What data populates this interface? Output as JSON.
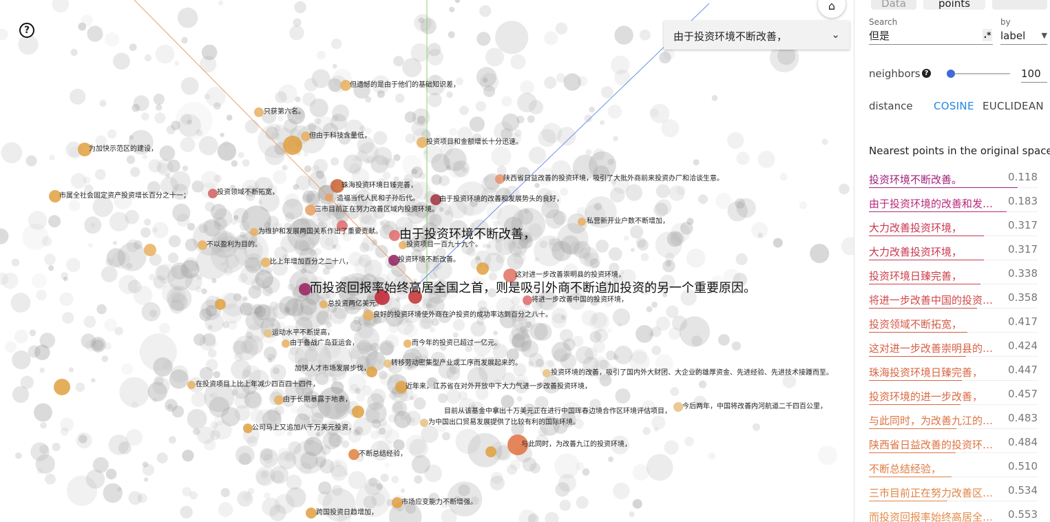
{
  "canvas": {
    "help_icon": "question-mark-icon",
    "home_icon": "home-icon",
    "selected_dropdown": {
      "value": "由于投资环境不断改善，",
      "icon": "chevron-down-icon"
    },
    "labels": [
      {
        "text": "但遗憾的是由于他们的基础知识差，",
        "big": false
      },
      {
        "text": "只获第六名。",
        "big": false
      },
      {
        "text": "但由于科技含量低，",
        "big": false
      },
      {
        "text": "为加快示范区的建设，",
        "big": false
      },
      {
        "text": "投资项目和金额增长十分迅速。",
        "big": false
      },
      {
        "text": "陕西省日益改善的投资环境，吸引了大批外商前来投资办厂和洽谈生意。",
        "big": false
      },
      {
        "text": "珠海投资环境日臻完善，",
        "big": false
      },
      {
        "text": "投资领域不断拓宽，",
        "big": false
      },
      {
        "text": "造福当代人民和子孙后代。",
        "big": false
      },
      {
        "text": "市属全社会固定资产投资增长百分之十一；",
        "big": false
      },
      {
        "text": "由于投资环境的改善和发展势头的良好，",
        "big": false
      },
      {
        "text": "三市目前正在努力改善区域内投资环境。",
        "big": false
      },
      {
        "text": "私营新开业户数不断增加，",
        "big": false
      },
      {
        "text": "为维护和发展两国关系作出了重要贡献。",
        "big": false
      },
      {
        "text": "由于投资环境不断改善，",
        "big": true
      },
      {
        "text": "不以盈利为目的。",
        "big": false
      },
      {
        "text": "投资项目一百九十九个。",
        "big": false
      },
      {
        "text": "比上年增加百分之二十八，",
        "big": false
      },
      {
        "text": "投资环境不断改善。",
        "big": false
      },
      {
        "text": "这对进一步改善崇明县的投资环境，",
        "big": false
      },
      {
        "text": "而投资回报率始终高居全国之首，则是吸引外商不断追加投资的另一个重要原因。",
        "big": true
      },
      {
        "text": "将进一步改善中国的投资环境，",
        "big": false
      },
      {
        "text": "总投资两亿美元。",
        "big": false
      },
      {
        "text": "良好的投资环境使外商在沪投资的成功率达到百分之八十。",
        "big": false
      },
      {
        "text": "运动水平不断提高，",
        "big": false
      },
      {
        "text": "由于备战广岛亚运会，",
        "big": false
      },
      {
        "text": "而今年的投资已超过一亿元。",
        "big": false
      },
      {
        "text": "转移劳动密集型产业或工序而发展起来的。",
        "big": false
      },
      {
        "text": "加快人才市场发展步伐，",
        "big": false
      },
      {
        "text": "投资环境的改善，吸引了国内外大财团、大企业的雄厚资金、先进经验、先进技术接踵而至。",
        "big": false
      },
      {
        "text": "在投资项目上比上年减少四百四十四件，",
        "big": false
      },
      {
        "text": "近年来，江苏省在对外开放中下大力气进一步改善投资环境，",
        "big": false
      },
      {
        "text": "由于长期暴露于地表，",
        "big": false
      },
      {
        "text": "目前从该基金中拿出十万美元正在进行中国珲春边境合作区环境评估项目，",
        "big": false
      },
      {
        "text": "今后两年，中国将改善内河航道二千四百公里，",
        "big": false
      },
      {
        "text": "为中国出口贸易发展提供了比较有利的国际环境。",
        "big": false
      },
      {
        "text": "公司马上又追加八千万美元投资，",
        "big": false
      },
      {
        "text": "不断总结经验，",
        "big": false
      },
      {
        "text": "与此同时，为改善九江的投资环境，",
        "big": false
      },
      {
        "text": "市场应变能力不断增强。",
        "big": false
      },
      {
        "text": "跨国投资日趋增加，",
        "big": false
      }
    ]
  },
  "panel": {
    "tabs": [
      {
        "label": "Data",
        "active": false
      },
      {
        "label": "points",
        "active": true
      },
      {
        "label": "",
        "active": false
      }
    ],
    "search": {
      "label": "Search",
      "value": "但是",
      "regex_label": ".*"
    },
    "by": {
      "label": "by",
      "value": "label",
      "icon": "caret-down-icon"
    },
    "neighbors": {
      "label": "neighbors",
      "help_icon": "help-icon",
      "value": "100",
      "slider_fraction": 0.0
    },
    "distance": {
      "label": "distance",
      "options": [
        {
          "label": "COSINE",
          "active": true
        },
        {
          "label": "EUCLIDEAN",
          "active": false
        }
      ]
    },
    "nearest_title": "Nearest points in the original space:",
    "nearest": [
      {
        "label": "投资环境不断改善。",
        "dist": "0.118",
        "color": "#a0207a"
      },
      {
        "label": "由于投资环境的改善和发展势头的良好，",
        "dist": "0.183",
        "color": "#b8287a"
      },
      {
        "label": "大力改善投资环境，",
        "dist": "0.317",
        "color": "#c8354e"
      },
      {
        "label": "大力改善投资环境，",
        "dist": "0.317",
        "color": "#c8354e"
      },
      {
        "label": "投资环境日臻完善，",
        "dist": "0.338",
        "color": "#cc3f4a"
      },
      {
        "label": "将进一步改善中国的投资环境，",
        "dist": "0.358",
        "color": "#d04848"
      },
      {
        "label": "投资领域不断拓宽，",
        "dist": "0.417",
        "color": "#d45a45"
      },
      {
        "label": "这对进一步改善崇明县的投资环境，",
        "dist": "0.424",
        "color": "#d65f44"
      },
      {
        "label": "珠海投资环境日臻完善，",
        "dist": "0.447",
        "color": "#d86642"
      },
      {
        "label": "投资环境的进一步改善，",
        "dist": "0.457",
        "color": "#da6a42"
      },
      {
        "label": "与此同时，为改善九江的投资环境，",
        "dist": "0.483",
        "color": "#dc7342"
      },
      {
        "label": "陕西省日益改善的投资环境，",
        "dist": "0.484",
        "color": "#dc7342"
      },
      {
        "label": "不断总结经验，",
        "dist": "0.510",
        "color": "#de7c44"
      },
      {
        "label": "三市目前正在努力改善区域内投资环境。",
        "dist": "0.534",
        "color": "#e08446"
      },
      {
        "label": "而投资回报率始终高居全国之首，",
        "dist": "0.553",
        "color": "#e28a48"
      }
    ]
  }
}
